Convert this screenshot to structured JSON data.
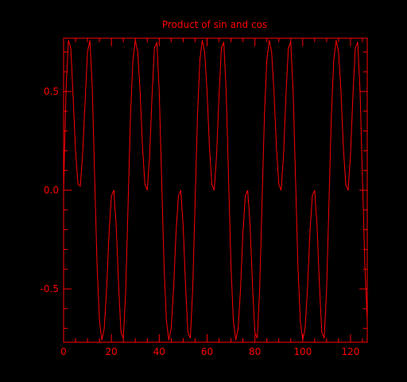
{
  "chart_data": {
    "type": "line",
    "title": "Product of sin and cos",
    "xlabel": "",
    "ylabel": "",
    "xlim": [
      0,
      127
    ],
    "ylim": [
      -0.77,
      0.77
    ],
    "x_ticks": [
      0,
      20,
      40,
      60,
      80,
      100,
      120
    ],
    "x_tick_labels": [
      "0",
      "20",
      "40",
      "60",
      "80",
      "100",
      "120"
    ],
    "y_ticks": [
      -0.5,
      0.0,
      0.5
    ],
    "y_tick_labels": [
      "-0.5",
      "0.0",
      "0.5"
    ],
    "grid": false,
    "color": "#ff0000",
    "background": "#000000",
    "series": [
      {
        "x": [
          0,
          1,
          2,
          3,
          4,
          5,
          6,
          7,
          8,
          9,
          10,
          11,
          12,
          13,
          14,
          15,
          16,
          17,
          18,
          19,
          20,
          21,
          22,
          23,
          24,
          25,
          26,
          27,
          28,
          29,
          30,
          31,
          32,
          33,
          34,
          35,
          36,
          37,
          38,
          39,
          40,
          41,
          42,
          43,
          44,
          45,
          46,
          47,
          48,
          49,
          50,
          51,
          52,
          53,
          54,
          55,
          56,
          57,
          58,
          59,
          60,
          61,
          62,
          63,
          64,
          65,
          66,
          67,
          68,
          69,
          70,
          71,
          72,
          73,
          74,
          75,
          76,
          77,
          78,
          79,
          80,
          81,
          82,
          83,
          84,
          85,
          86,
          87,
          88,
          89,
          90,
          91,
          92,
          93,
          94,
          95,
          96,
          97,
          98,
          99,
          100,
          101,
          102,
          103,
          104,
          105,
          106,
          107,
          108,
          109,
          110,
          111,
          112,
          113,
          114,
          115,
          116,
          117,
          118,
          119,
          120,
          121,
          122,
          123,
          124,
          125,
          126,
          127
        ],
        "values": [
          0.0,
          0.5,
          0.76,
          0.72,
          0.47,
          0.2,
          0.03,
          0.02,
          0.19,
          0.45,
          0.7,
          0.76,
          0.52,
          0.06,
          -0.38,
          -0.66,
          -0.76,
          -0.7,
          -0.5,
          -0.22,
          -0.03,
          0.0,
          -0.18,
          -0.48,
          -0.72,
          -0.75,
          -0.5,
          -0.06,
          0.38,
          0.66,
          0.76,
          0.7,
          0.5,
          0.22,
          0.03,
          0.0,
          0.18,
          0.48,
          0.72,
          0.75,
          0.5,
          0.06,
          -0.38,
          -0.66,
          -0.76,
          -0.7,
          -0.5,
          -0.22,
          -0.03,
          0.0,
          -0.18,
          -0.48,
          -0.72,
          -0.75,
          -0.5,
          -0.06,
          0.38,
          0.66,
          0.76,
          0.7,
          0.5,
          0.22,
          0.03,
          0.0,
          0.18,
          0.48,
          0.72,
          0.75,
          0.5,
          0.06,
          -0.38,
          -0.66,
          -0.76,
          -0.7,
          -0.5,
          -0.22,
          -0.03,
          0.0,
          -0.18,
          -0.48,
          -0.72,
          -0.75,
          -0.5,
          -0.06,
          0.38,
          0.66,
          0.76,
          0.7,
          0.5,
          0.22,
          0.03,
          0.0,
          0.18,
          0.48,
          0.72,
          0.75,
          0.5,
          0.06,
          -0.38,
          -0.66,
          -0.76,
          -0.7,
          -0.5,
          -0.22,
          -0.03,
          0.0,
          -0.18,
          -0.48,
          -0.72,
          -0.75,
          -0.5,
          -0.06,
          0.38,
          0.66,
          0.76,
          0.7,
          0.5,
          0.22,
          0.03,
          0.0,
          0.18,
          0.48,
          0.72,
          0.75,
          0.5,
          0.06,
          -0.38,
          -0.66
        ]
      }
    ]
  }
}
